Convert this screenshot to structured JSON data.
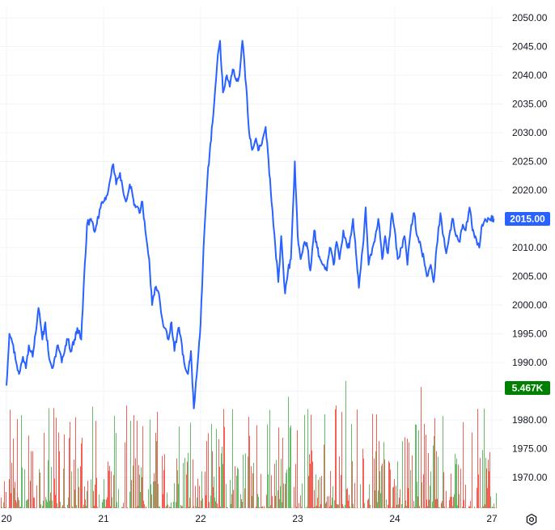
{
  "chart_data": {
    "type": "line",
    "grid": true,
    "price_axis": {
      "ticks": [
        "2050.00",
        "2045.00",
        "2040.00",
        "2035.00",
        "2030.00",
        "2025.00",
        "2020.00",
        "2015.00",
        "2010.00",
        "2005.00",
        "2000.00",
        "1995.00",
        "1990.00",
        "1985.00",
        "1980.00",
        "1975.00",
        "1970.00"
      ],
      "min": 1966.5,
      "max": 2053
    },
    "time_axis": {
      "ticks": [
        "20",
        "21",
        "22",
        "23",
        "24",
        "27"
      ],
      "positions": [
        0,
        1,
        2,
        3,
        4,
        5
      ],
      "range": [
        0,
        5.03
      ]
    },
    "price_series": {
      "color": "#2962ff",
      "x": [
        0,
        0.03,
        0.07,
        0.1,
        0.13,
        0.17,
        0.2,
        0.23,
        0.27,
        0.3,
        0.33,
        0.37,
        0.4,
        0.43,
        0.47,
        0.5,
        0.53,
        0.57,
        0.6,
        0.63,
        0.67,
        0.7,
        0.73,
        0.77,
        0.8,
        0.83,
        0.87,
        0.9,
        0.93,
        0.97,
        1,
        1.03,
        1.07,
        1.1,
        1.13,
        1.17,
        1.2,
        1.23,
        1.27,
        1.3,
        1.33,
        1.37,
        1.4,
        1.43,
        1.47,
        1.5,
        1.53,
        1.57,
        1.6,
        1.63,
        1.67,
        1.7,
        1.73,
        1.77,
        1.8,
        1.83,
        1.87,
        1.9,
        1.93,
        1.97,
        2,
        2.03,
        2.07,
        2.1,
        2.13,
        2.17,
        2.2,
        2.23,
        2.27,
        2.3,
        2.33,
        2.37,
        2.4,
        2.43,
        2.47,
        2.5,
        2.53,
        2.57,
        2.6,
        2.63,
        2.67,
        2.7,
        2.73,
        2.77,
        2.8,
        2.83,
        2.87,
        2.9,
        2.93,
        2.97,
        3,
        3.03,
        3.07,
        3.1,
        3.13,
        3.17,
        3.2,
        3.23,
        3.27,
        3.3,
        3.33,
        3.37,
        3.4,
        3.43,
        3.47,
        3.5,
        3.53,
        3.57,
        3.6,
        3.63,
        3.67,
        3.7,
        3.73,
        3.77,
        3.8,
        3.83,
        3.87,
        3.9,
        3.93,
        3.97,
        4,
        4.03,
        4.07,
        4.1,
        4.13,
        4.17,
        4.2,
        4.23,
        4.27,
        4.3,
        4.33,
        4.37,
        4.4,
        4.43,
        4.47,
        4.5,
        4.53,
        4.57,
        4.6,
        4.63,
        4.67,
        4.7,
        4.73,
        4.77,
        4.8,
        4.83,
        4.87,
        4.9,
        4.93,
        4.97,
        4.99,
        5.0,
        5.02
      ],
      "y": [
        1986,
        1995,
        1993,
        1990,
        1988,
        1991,
        1989,
        1993,
        1991,
        1995,
        1999.5,
        1994,
        1997,
        1992,
        1989,
        1991,
        1993,
        1990,
        1992,
        1994,
        1992,
        1994,
        1996,
        1994,
        2005,
        2014,
        2015,
        2013,
        2014,
        2017,
        2018,
        2019,
        2022,
        2024.5,
        2021,
        2023,
        2020,
        2018,
        2021,
        2019,
        2017,
        2016,
        2018,
        2013,
        2008,
        2000,
        2003,
        2002,
        1998,
        1996,
        1994,
        1997,
        1992,
        1996,
        1994,
        1990,
        1988,
        1992,
        1982,
        1990,
        1997,
        2010,
        2022,
        2028,
        2033,
        2042,
        2046,
        2037,
        2040,
        2038,
        2041,
        2039,
        2040,
        2046,
        2038,
        2030,
        2027,
        2029,
        2027,
        2028,
        2031,
        2025,
        2018,
        2010,
        2004,
        2012,
        2002,
        2006,
        2008,
        2025,
        2012,
        2008,
        2011,
        2010,
        2006,
        2013,
        2010,
        2008,
        2007,
        2006,
        2010,
        2007,
        2011,
        2008,
        2013,
        2011,
        2010,
        2015,
        2009,
        2003,
        2010,
        2017,
        2007,
        2010,
        2012,
        2015,
        2008,
        2012,
        2009,
        2016,
        2013,
        2008,
        2010,
        2012,
        2007,
        2014,
        2016,
        2012,
        2010,
        2008,
        2005,
        2007,
        2004,
        2010,
        2016,
        2012,
        2009,
        2013,
        2015,
        2012,
        2011,
        2014,
        2013,
        2017,
        2013,
        2012,
        2010,
        2014,
        2015,
        2015,
        2015,
        2015,
        2015
      ]
    },
    "last_price": {
      "label": "2015.00",
      "value": 2015,
      "color": "#2962ff"
    },
    "volume": {
      "label": "5.467K",
      "value": 5467,
      "max": 6500,
      "color": "#008000",
      "up_color": "#4caf50",
      "down_color": "#f44336"
    }
  },
  "controls": {
    "settings_icon": "gear-icon"
  }
}
